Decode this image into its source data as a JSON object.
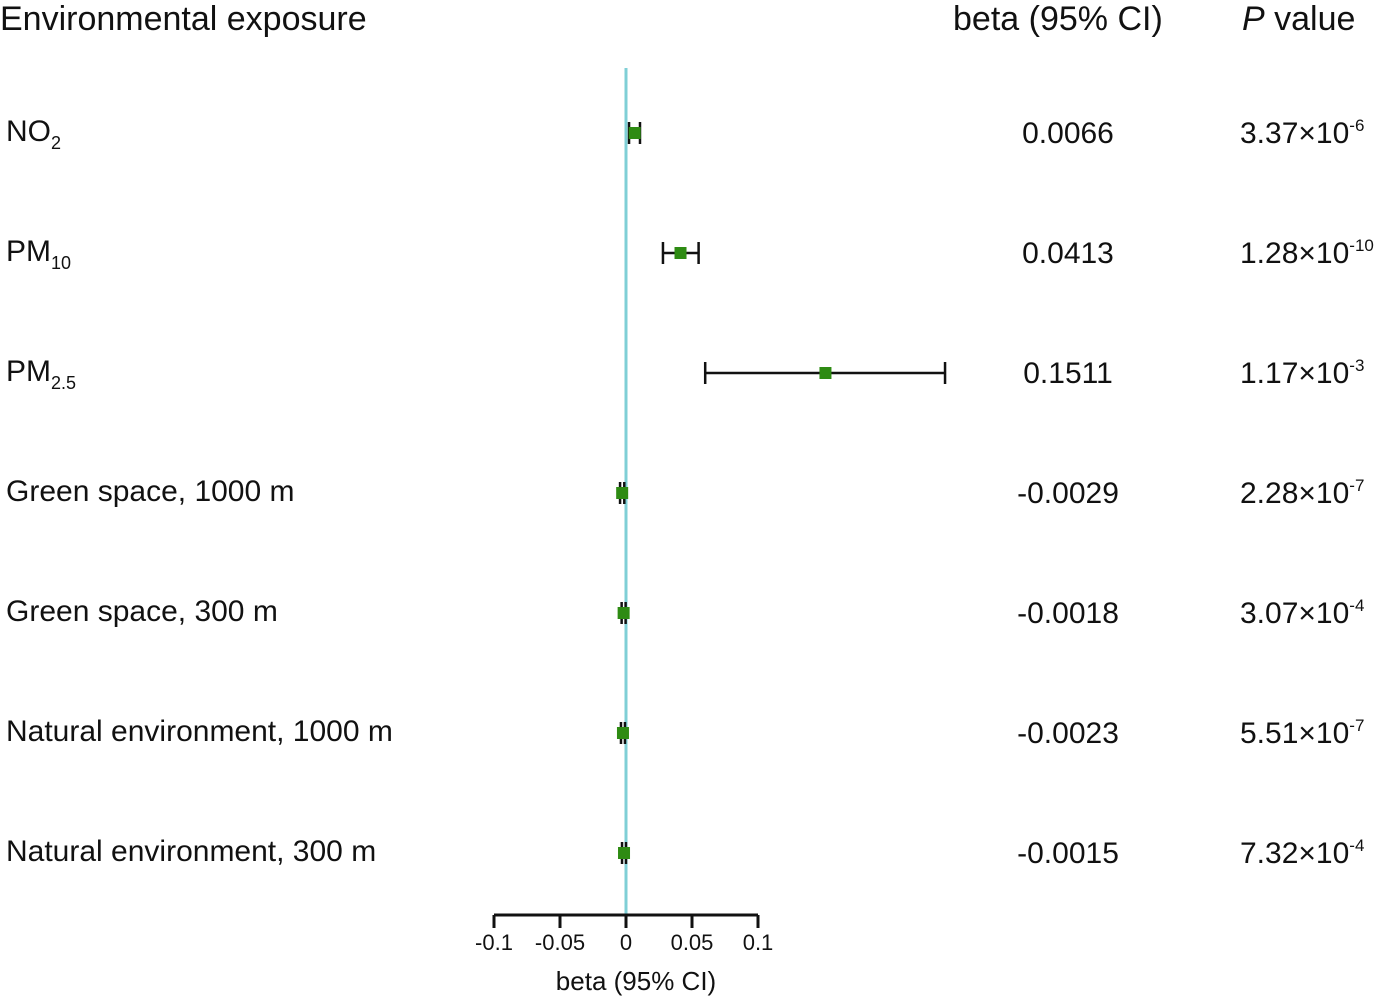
{
  "chart_data": {
    "type": "forest",
    "header": {
      "exposure": "Environmental exposure",
      "beta": "beta (95% CI)",
      "p_italic": "P",
      "p_rest": " value"
    },
    "xlabel": "beta (95% CI)",
    "xlim": [
      -0.1,
      0.1
    ],
    "xticks": [
      "-0.1",
      "-0.05",
      "0",
      "0.05",
      "0.1"
    ],
    "reference_line": 0,
    "colors": {
      "point": "#2e8b13",
      "ci": "#111111",
      "reference": "#7fcfd6"
    },
    "rows": [
      {
        "label": "NO",
        "sub": "2",
        "beta": 0.0066,
        "lo": 0.0023,
        "hi": 0.0106,
        "beta_text": "0.0066",
        "p_mant": "3.37×10",
        "p_exp": "-6"
      },
      {
        "label": "PM",
        "sub": "10",
        "beta": 0.0413,
        "lo": 0.028,
        "hi": 0.055,
        "beta_text": "0.0413",
        "p_mant": "1.28×10",
        "p_exp": "-10"
      },
      {
        "label": "PM",
        "sub": "2.5",
        "beta": 0.1511,
        "lo": 0.06,
        "hi": 0.2417,
        "beta_text": "0.1511",
        "p_mant": "1.17×10",
        "p_exp": "-3"
      },
      {
        "label": "Green space, 1000 m",
        "sub": "",
        "beta": -0.0029,
        "lo": -0.0045,
        "hi": -0.0013,
        "beta_text": "-0.0029",
        "p_mant": "2.28×10",
        "p_exp": "-7"
      },
      {
        "label": "Green space, 300 m",
        "sub": "",
        "beta": -0.0018,
        "lo": -0.0033,
        "hi": -0.0003,
        "beta_text": "-0.0018",
        "p_mant": "3.07×10",
        "p_exp": "-4"
      },
      {
        "label": "Natural environment, 1000 m",
        "sub": "",
        "beta": -0.0023,
        "lo": -0.0038,
        "hi": -0.0008,
        "beta_text": "-0.0023",
        "p_mant": "5.51×10",
        "p_exp": "-7"
      },
      {
        "label": "Natural environment, 300 m",
        "sub": "",
        "beta": -0.0015,
        "lo": -0.003,
        "hi": 0.0,
        "beta_text": "-0.0015",
        "p_mant": "7.32×10",
        "p_exp": "-4"
      }
    ]
  }
}
